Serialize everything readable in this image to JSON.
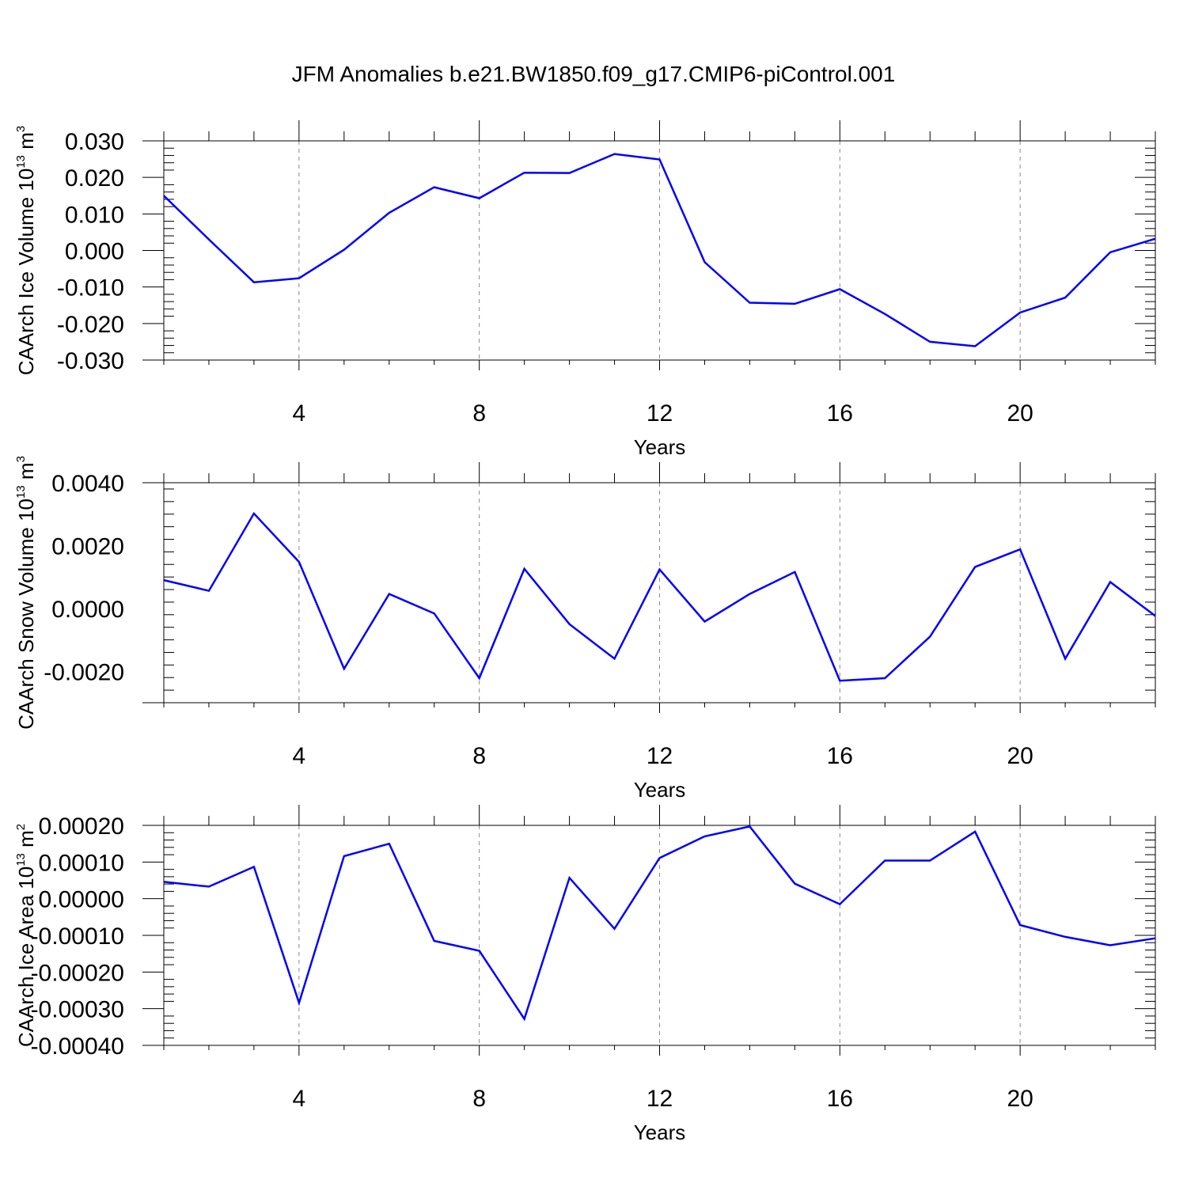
{
  "title": "JFM Anomalies b.e21.BW1850.f09_g17.CMIP6-piControl.001",
  "colors": {
    "line": "#0000ff",
    "axis": "#000000",
    "grid": "#888888",
    "background": "#ffffff"
  },
  "chart_data": [
    {
      "type": "line",
      "xlabel": "Years",
      "ylabel": "CAArch Ice Volume 10",
      "ylabel_exponent": "13",
      "ylabel_unit": "m",
      "ylabel_unit_exponent": "3",
      "xlim": [
        1,
        23
      ],
      "ylim": [
        -0.03,
        0.03
      ],
      "xticks": [
        4,
        8,
        12,
        16,
        20
      ],
      "xtick_labels": [
        "4",
        "8",
        "12",
        "16",
        "20"
      ],
      "yticks": [
        -0.03,
        -0.02,
        -0.01,
        0.0,
        0.01,
        0.02,
        0.03
      ],
      "ytick_labels": [
        "-0.030",
        "-0.020",
        "-0.010",
        "0.000",
        "0.010",
        "0.020",
        "0.030"
      ],
      "x": [
        1,
        2,
        3,
        4,
        5,
        6,
        7,
        8,
        9,
        10,
        11,
        12,
        13,
        14,
        15,
        16,
        17,
        18,
        19,
        20,
        21,
        22,
        23
      ],
      "series": [
        {
          "name": "Ice Volume",
          "values": [
            0.015,
            0.003,
            -0.0087,
            -0.0076,
            0.0002,
            0.0103,
            0.0173,
            0.0143,
            0.0213,
            0.0212,
            0.0264,
            0.0249,
            -0.0032,
            -0.0143,
            -0.0146,
            -0.0106,
            -0.0174,
            -0.025,
            -0.0262,
            -0.017,
            -0.0129,
            -0.0005,
            0.0032
          ]
        }
      ]
    },
    {
      "type": "line",
      "xlabel": "Years",
      "ylabel": "CAArch Snow Volume 10",
      "ylabel_exponent": "13",
      "ylabel_unit": "m",
      "ylabel_unit_exponent": "3",
      "xlim": [
        1,
        23
      ],
      "ylim": [
        -0.003,
        0.004
      ],
      "xticks": [
        4,
        8,
        12,
        16,
        20
      ],
      "xtick_labels": [
        "4",
        "8",
        "12",
        "16",
        "20"
      ],
      "yticks": [
        -0.002,
        0.0,
        0.002,
        0.004
      ],
      "ytick_labels": [
        "-0.0020",
        "0.0000",
        "0.0020",
        "0.0040"
      ],
      "x": [
        1,
        2,
        3,
        4,
        5,
        6,
        7,
        8,
        9,
        10,
        11,
        12,
        13,
        14,
        15,
        16,
        17,
        18,
        19,
        20,
        21,
        22,
        23
      ],
      "series": [
        {
          "name": "Snow Volume",
          "values": [
            0.0009,
            0.00056,
            0.00302,
            0.00148,
            -0.00192,
            0.00046,
            -0.00016,
            -0.00222,
            0.00126,
            -0.0005,
            -0.0016,
            0.00124,
            -0.00042,
            0.00046,
            0.00116,
            -0.0023,
            -0.00222,
            -0.0009,
            0.00132,
            0.00188,
            -0.0016,
            0.00084,
            -0.00024
          ]
        }
      ]
    },
    {
      "type": "line",
      "xlabel": "Years",
      "ylabel": "CAArch Ice Area 10",
      "ylabel_exponent": "13",
      "ylabel_unit": "m",
      "ylabel_unit_exponent": "2",
      "xlim": [
        1,
        23
      ],
      "ylim": [
        -0.0004,
        0.0002
      ],
      "xticks": [
        4,
        8,
        12,
        16,
        20
      ],
      "xtick_labels": [
        "4",
        "8",
        "12",
        "16",
        "20"
      ],
      "yticks": [
        -0.0004,
        -0.0003,
        -0.0002,
        -0.0001,
        0.0,
        0.0001,
        0.0002
      ],
      "ytick_labels": [
        "-0.00040",
        "-0.00030",
        "-0.00020",
        "-0.00010",
        "0.00000",
        "0.00010",
        "0.00020"
      ],
      "x": [
        1,
        2,
        3,
        4,
        5,
        6,
        7,
        8,
        9,
        10,
        11,
        12,
        13,
        14,
        15,
        16,
        17,
        18,
        19,
        20,
        21,
        22,
        23
      ],
      "series": [
        {
          "name": "Ice Area",
          "values": [
            4.6e-05,
            3.3e-05,
            8.7e-05,
            -0.000284,
            0.000116,
            0.00015,
            -0.000115,
            -0.000142,
            -0.000328,
            5.7e-05,
            -8.2e-05,
            0.000111,
            0.00017,
            0.000197,
            4.1e-05,
            -1.5e-05,
            0.000104,
            0.000104,
            0.000183,
            -7.2e-05,
            -0.000104,
            -0.000127,
            -0.000108
          ]
        }
      ]
    }
  ]
}
